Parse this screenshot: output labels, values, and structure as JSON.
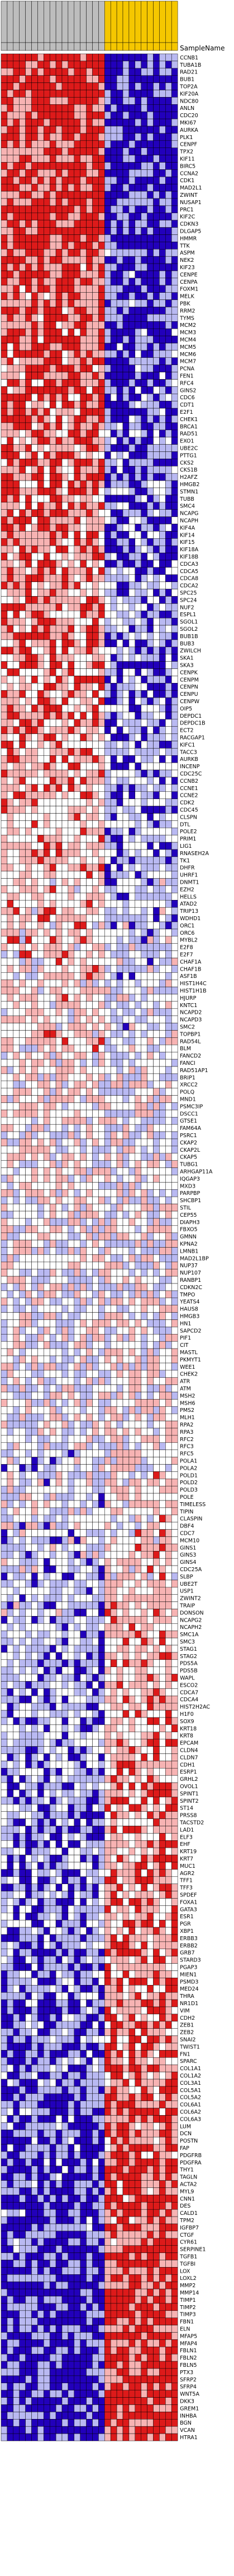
{
  "chart_data": {
    "type": "heatmap",
    "title": "",
    "xlabel": "",
    "ylabel": "",
    "header_label": "SampleName",
    "palette": {
      "high": "#dd1a1a",
      "mid_high": "#f7b3b3",
      "neutral": "#ffffff",
      "mid_low": "#b9b9f2",
      "low": "#2200bb",
      "grid": "#000000",
      "group_a": "#bdbdbd",
      "group_b": "#f5c700"
    },
    "value_range": [
      -3,
      3
    ],
    "sample_groups": [
      {
        "label": "",
        "count": 17,
        "color": "#bdbdbd"
      },
      {
        "label": "",
        "count": 12,
        "color": "#f5c700"
      }
    ],
    "samples": [
      "",
      "",
      "",
      "",
      "",
      "",
      "",
      "",
      "",
      "",
      "",
      "",
      "",
      "",
      "",
      "",
      "",
      "",
      "",
      "",
      "",
      "",
      "",
      "",
      "",
      "",
      "",
      "",
      ""
    ],
    "genes": [
      "CCNB1",
      "TUBA1B",
      "RAD21",
      "BUB1",
      "TOP2A",
      "KIF20A",
      "NDC80",
      "ANLN",
      "CDC20",
      "MKI67",
      "AURKA",
      "PLK1",
      "CENPF",
      "TPX2",
      "KIF11",
      "BIRC5",
      "CCNA2",
      "CDK1",
      "MAD2L1",
      "ZWINT",
      "NUSAP1",
      "PRC1",
      "KIF2C",
      "CDKN3",
      "DLGAP5",
      "HMMR",
      "TTK",
      "ASPM",
      "NEK2",
      "KIF23",
      "CENPE",
      "CENPA",
      "FOXM1",
      "MELK",
      "PBK",
      "RRM2",
      "TYMS",
      "MCM2",
      "MCM3",
      "MCM4",
      "MCM5",
      "MCM6",
      "MCM7",
      "PCNA",
      "FEN1",
      "RFC4",
      "GINS2",
      "CDC6",
      "CDT1",
      "E2F1",
      "CHEK1",
      "BRCA1",
      "RAD51",
      "EXO1",
      "UBE2C",
      "PTTG1",
      "CKS2",
      "CKS1B",
      "H2AFZ",
      "HMGB2",
      "STMN1",
      "TUBB",
      "SMC4",
      "NCAPG",
      "NCAPH",
      "KIF4A",
      "KIF14",
      "KIF15",
      "KIF18A",
      "KIF18B",
      "CDCA3",
      "CDCA5",
      "CDCA8",
      "CDCA2",
      "SPC25",
      "SPC24",
      "NUF2",
      "ESPL1",
      "SGOL1",
      "SGOL2",
      "BUB1B",
      "BUB3",
      "ZWILCH",
      "SKA1",
      "SKA3",
      "CENPK",
      "CENPM",
      "CENPN",
      "CENPU",
      "CENPW",
      "OIP5",
      "DEPDC1",
      "DEPDC1B",
      "ECT2",
      "RACGAP1",
      "KIFC1",
      "TACC3",
      "AURKB",
      "INCENP",
      "CDC25C",
      "CCNB2",
      "CCNE1",
      "CCNE2",
      "CDK2",
      "CDC45",
      "CLSPN",
      "DTL",
      "POLE2",
      "PRIM1",
      "LIG1",
      "RNASEH2A",
      "TK1",
      "DHFR",
      "UHRF1",
      "DNMT1",
      "EZH2",
      "HELLS",
      "ATAD2",
      "TRIP13",
      "WDHD1",
      "ORC1",
      "ORC6",
      "MYBL2",
      "E2F8",
      "E2F7",
      "CHAF1A",
      "CHAF1B",
      "ASF1B",
      "HIST1H4C",
      "HIST1H1B",
      "HJURP",
      "KNTC1",
      "NCAPD2",
      "NCAPD3",
      "SMC2",
      "TOPBP1",
      "RAD54L",
      "BLM",
      "FANCD2",
      "FANCI",
      "RAD51AP1",
      "BRIP1",
      "XRCC2",
      "POLQ",
      "MND1",
      "PSMC3IP",
      "DSCC1",
      "GTSE1",
      "FAM64A",
      "PSRC1",
      "CKAP2",
      "CKAP2L",
      "CKAP5",
      "TUBG1",
      "ARHGAP11A",
      "IQGAP3",
      "MXD3",
      "PARPBP",
      "SHCBP1",
      "STIL",
      "CEP55",
      "DIAPH3",
      "FBXO5",
      "GMNN",
      "KPNA2",
      "LMNB1",
      "MAD2L1BP",
      "NUP37",
      "NUP107",
      "RANBP1",
      "CDKN2C",
      "TMPO",
      "YEATS4",
      "HAUS8",
      "HMGB3",
      "HN1",
      "SAPCD2",
      "PIF1",
      "CIT",
      "MASTL",
      "PKMYT1",
      "WEE1",
      "CHEK2",
      "ATR",
      "ATM",
      "MSH2",
      "MSH6",
      "PMS2",
      "MLH1",
      "RPA2",
      "RPA3",
      "RFC2",
      "RFC3",
      "RFC5",
      "POLA1",
      "POLA2",
      "POLD1",
      "POLD2",
      "POLD3",
      "POLE",
      "TIMELESS",
      "TIPIN",
      "CLASPIN",
      "DBF4",
      "CDC7",
      "MCM10",
      "GINS1",
      "GINS3",
      "GINS4",
      "CDC25A",
      "SLBP",
      "UBE2T",
      "USP1",
      "ZWINT2",
      "TRAIP",
      "DONSON",
      "NCAPG2",
      "NCAPH2",
      "SMC1A",
      "SMC3",
      "STAG1",
      "STAG2",
      "PDS5A",
      "PDS5B",
      "WAPL",
      "ESCO2",
      "CDCA7",
      "CDCA4",
      "HIST2H2AC",
      "H1F0",
      "SOX9",
      "KRT18",
      "KRT8",
      "EPCAM",
      "CLDN4",
      "CLDN7",
      "CDH1",
      "ESRP1",
      "GRHL2",
      "OVOL1",
      "SPINT1",
      "SPINT2",
      "ST14",
      "PRSS8",
      "TACSTD2",
      "LAD1",
      "ELF3",
      "EHF",
      "KRT19",
      "KRT7",
      "MUC1",
      "AGR2",
      "TFF1",
      "TFF3",
      "SPDEF",
      "FOXA1",
      "GATA3",
      "ESR1",
      "PGR",
      "XBP1",
      "ERBB3",
      "ERBB2",
      "GRB7",
      "STARD3",
      "PGAP3",
      "MIEN1",
      "PSMD3",
      "MED24",
      "THRA",
      "NR1D1",
      "VIM",
      "CDH2",
      "ZEB1",
      "ZEB2",
      "SNAI2",
      "TWIST1",
      "FN1",
      "SPARC",
      "COL1A1",
      "COL1A2",
      "COL3A1",
      "COL5A1",
      "COL5A2",
      "COL6A1",
      "COL6A2",
      "COL6A3",
      "LUM",
      "DCN",
      "POSTN",
      "FAP",
      "PDGFRB",
      "PDGFRA",
      "THY1",
      "TAGLN",
      "ACTA2",
      "MYL9",
      "CNN1",
      "DES",
      "CALD1",
      "TPM2",
      "IGFBP7",
      "CTGF",
      "CYR61",
      "SERPINE1",
      "TGFB1",
      "TGFBI",
      "LOX",
      "LOXL2",
      "MMP2",
      "MMP14",
      "TIMP1",
      "TIMP2",
      "TIMP3",
      "FBN1",
      "ELN",
      "MFAP5",
      "MFAP4",
      "FBLN1",
      "FBLN2",
      "FBLN5",
      "PTX3",
      "SFRP2",
      "SFRP4",
      "WNT5A",
      "DKK3",
      "GREM1",
      "INHBA",
      "BGN",
      "VCAN",
      "HTRA1"
    ],
    "cells_note": "Cell colours approximate: left 17 columns predominantly red/pink in upper rows trending blue in lower rows; right 12 columns predominantly blue/lavender in upper rows trending red in lower rows."
  }
}
